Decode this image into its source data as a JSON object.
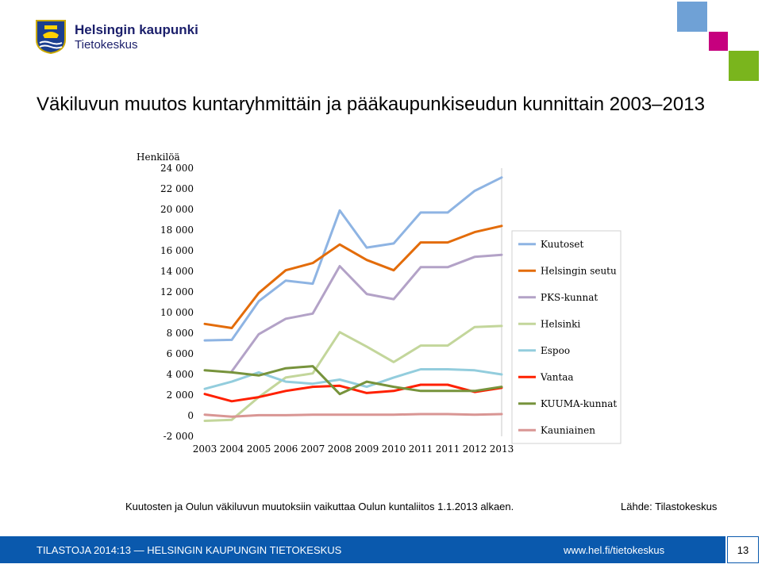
{
  "header": {
    "logo_line1": "Helsingin kaupunki",
    "logo_line2": "Tietokeskus",
    "brand_colors": [
      "#6fa1d6",
      "#c6007e",
      "#7ab51d",
      "#1b1f6b"
    ]
  },
  "title": "Väkiluvun muutos kuntaryhmittäin ja pääkaupunkiseudun kunnittain 2003–2013",
  "chart_data": {
    "type": "line",
    "title": "",
    "ylabel": "Henkilöä",
    "xlabel": "",
    "ylim": [
      -2000,
      24000
    ],
    "yticks": [
      -2000,
      0,
      2000,
      4000,
      6000,
      8000,
      10000,
      12000,
      14000,
      16000,
      18000,
      20000,
      22000,
      24000
    ],
    "ytick_labels": [
      "-2 000",
      "0",
      "2 000",
      "4 000",
      "6 000",
      "8 000",
      "10 000",
      "12 000",
      "14 000",
      "16 000",
      "18 000",
      "20 000",
      "22 000",
      "24 000"
    ],
    "categories": [
      "2003",
      "2004",
      "2005",
      "2006",
      "2007",
      "2008",
      "2009",
      "2010",
      "2011",
      "2011",
      "2012",
      "2013"
    ],
    "grid": false,
    "legend": "right",
    "series": [
      {
        "name": "Kuutoset",
        "color": "#8eb4e3",
        "values": [
          7300,
          7350,
          11100,
          13100,
          12800,
          19900,
          16300,
          16700,
          19700,
          19700,
          21800,
          23100
        ]
      },
      {
        "name": "Helsingin seutu",
        "color": "#e36c0a",
        "values": [
          8900,
          8500,
          11900,
          14100,
          14800,
          16600,
          15100,
          14100,
          16800,
          16800,
          17800,
          18400
        ]
      },
      {
        "name": "PKS-kunnat",
        "color": "#b3a2c7",
        "values": [
          null,
          4300,
          7900,
          9400,
          9900,
          14500,
          11800,
          11300,
          14400,
          14400,
          15400,
          15600
        ]
      },
      {
        "name": "Helsinki",
        "color": "#c3d69b",
        "values": [
          -500,
          -400,
          1800,
          3700,
          4100,
          8100,
          6700,
          5200,
          6800,
          6800,
          8600,
          8700
        ]
      },
      {
        "name": "Espoo",
        "color": "#93cddd",
        "values": [
          2600,
          3300,
          4200,
          3300,
          3100,
          3500,
          2800,
          3700,
          4500,
          4500,
          4400,
          4000
        ]
      },
      {
        "name": "Vantaa",
        "color": "#ff2000",
        "values": [
          2100,
          1400,
          1800,
          2400,
          2800,
          2900,
          2200,
          2400,
          3000,
          3000,
          2300,
          2700
        ]
      },
      {
        "name": "KUUMA-kunnat",
        "color": "#77933c",
        "values": [
          4400,
          4200,
          3900,
          4600,
          4800,
          2100,
          3300,
          2800,
          2400,
          2400,
          2400,
          2800
        ]
      },
      {
        "name": "Kauniainen",
        "color": "#d99694",
        "values": [
          100,
          -100,
          50,
          50,
          100,
          100,
          100,
          100,
          150,
          150,
          100,
          150
        ]
      }
    ]
  },
  "footnote": "Kuutosten ja Oulun väkiluvun muutoksiin vaikuttaa Oulun kuntaliitos 1.1.2013 alkaen.",
  "source": "Lähde: Tilastokeskus",
  "footer": {
    "left": "TILASTOJA 2014:13 — HELSINGIN KAUPUNGIN TIETOKESKUS",
    "right": "www.hel.fi/tietokeskus",
    "page": "13"
  }
}
